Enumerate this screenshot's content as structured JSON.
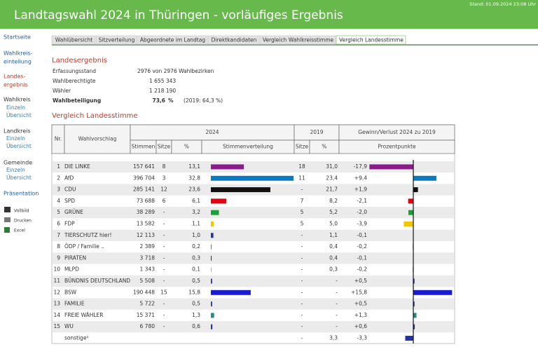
{
  "header": {
    "title": "Landtagswahl 2024 in Thüringen - vorläufiges Ergebnis",
    "timestamp": "Stand: 01.09.2024  23:08 Uhr"
  },
  "nav": {
    "start": "Startseite",
    "wk1": "Wahlkreis-",
    "wk2": "einteilung",
    "le1": "Landes-",
    "le2": "ergebnis",
    "wahlkreis": "Wahlkreis",
    "wk_einzeln": "Einzeln",
    "wk_uebersicht": "Übersicht",
    "landkreis": "Landkreis",
    "lk_einzeln": "Einzeln",
    "lk_uebersicht": "Übersicht",
    "gemeinde": "Gemeinde",
    "gm_einzeln": "Einzeln",
    "gm_uebersicht": "Übersicht",
    "praesentation": "Präsentation",
    "vollbild": "Vollbild",
    "drucken": "Drucken",
    "excel": "Excel"
  },
  "tabs": [
    "Wahlübersicht",
    "Sitzverteilung",
    "Abgeordnete im Landtag",
    "Direktkandidaten",
    "Vergleich Wahlkreisstimme",
    "Vergleich Landesstimme"
  ],
  "summary": {
    "title": "Landesergebnis",
    "rows": [
      [
        "Erfassungsstand",
        "2976 von 2976 Wahlbezirken"
      ],
      [
        "Wahlberechtigte",
        "1 655 343"
      ],
      [
        "Wähler",
        "1 218 190"
      ]
    ],
    "turnout": {
      "label": "Wahlbeteiligung",
      "value": "73,6",
      "unit": "%",
      "previous": "(2019: 64,3 %)"
    }
  },
  "table": {
    "title": "Vergleich Landesstimme",
    "headers": {
      "nr": "Nr.",
      "name": "Wahlvorschlag",
      "y2024": "2024",
      "y2019": "2019",
      "change": "Gewinn/Verlust 2024 zu 2019",
      "votes": "Stimmen",
      "seats": "Sitze",
      "pct": "%",
      "dist": "Stimmenverteilung",
      "seats2019": "Sitze",
      "pct2019": "%",
      "points": "Prozentpunkte"
    },
    "rows": [
      {
        "nr": "1",
        "name": "DIE LINKE",
        "votes": "157 641",
        "seats": "8",
        "pct": "13,1",
        "seats2019": "18",
        "pct2019": "31,0",
        "change": "-17,9",
        "color": "#8b1a8b"
      },
      {
        "nr": "2",
        "name": "AfD",
        "votes": "396 704",
        "seats": "3",
        "pct": "32,8",
        "seats2019": "11",
        "pct2019": "23,4",
        "change": "+9,4",
        "color": "#0a7bc1"
      },
      {
        "nr": "3",
        "name": "CDU",
        "votes": "285 141",
        "seats": "12",
        "pct": "23,6",
        "seats2019": "-",
        "pct2019": "21,7",
        "change": "+1,9",
        "color": "#111111"
      },
      {
        "nr": "4",
        "name": "SPD",
        "votes": "73 688",
        "seats": "6",
        "pct": "6,1",
        "seats2019": "7",
        "pct2019": "8,2",
        "change": "-2,1",
        "color": "#e3000f"
      },
      {
        "nr": "5",
        "name": "GRÜNE",
        "votes": "38 289",
        "seats": "-",
        "pct": "3,2",
        "seats2019": "5",
        "pct2019": "5,2",
        "change": "-2,0",
        "color": "#1aa037"
      },
      {
        "nr": "6",
        "name": "FDP",
        "votes": "13 582",
        "seats": "-",
        "pct": "1,1",
        "seats2019": "5",
        "pct2019": "5,0",
        "change": "-3,9",
        "color": "#f5c400"
      },
      {
        "nr": "7",
        "name": "TIERSCHUTZ hier!",
        "votes": "12 113",
        "seats": "-",
        "pct": "1,0",
        "seats2019": "-",
        "pct2019": "1,1",
        "change": "-0,1",
        "color": "#2233aa"
      },
      {
        "nr": "8",
        "name": "ÖDP / Familie ..",
        "votes": "2 389",
        "seats": "-",
        "pct": "0,2",
        "seats2019": "-",
        "pct2019": "0,4",
        "change": "-0,2",
        "color": "#2233aa"
      },
      {
        "nr": "9",
        "name": "PIRATEN",
        "votes": "3 718",
        "seats": "-",
        "pct": "0,3",
        "seats2019": "-",
        "pct2019": "0,4",
        "change": "-0,1",
        "color": "#2233aa"
      },
      {
        "nr": "10",
        "name": "MLPD",
        "votes": "1 343",
        "seats": "-",
        "pct": "0,1",
        "seats2019": "-",
        "pct2019": "0,3",
        "change": "-0,2",
        "color": "#2233aa"
      },
      {
        "nr": "11",
        "name": "BÜNDNIS DEUTSCHLAND",
        "votes": "5 508",
        "seats": "-",
        "pct": "0,5",
        "seats2019": "-",
        "pct2019": "-",
        "change": "+0,5",
        "color": "#2233aa"
      },
      {
        "nr": "12",
        "name": "BSW",
        "votes": "190 448",
        "seats": "15",
        "pct": "15,8",
        "seats2019": "-",
        "pct2019": "-",
        "change": "+15,8",
        "color": "#1a1ad0"
      },
      {
        "nr": "13",
        "name": "FAMILIE",
        "votes": "5 722",
        "seats": "-",
        "pct": "0,5",
        "seats2019": "-",
        "pct2019": "-",
        "change": "+0,5",
        "color": "#2233aa"
      },
      {
        "nr": "14",
        "name": "FREIE WÄHLER",
        "votes": "15 371",
        "seats": "-",
        "pct": "1,3",
        "seats2019": "-",
        "pct2019": "-",
        "change": "+1,3",
        "color": "#1f8f86"
      },
      {
        "nr": "15",
        "name": "WU",
        "votes": "6 780",
        "seats": "-",
        "pct": "0,6",
        "seats2019": "-",
        "pct2019": "-",
        "change": "+0,6",
        "color": "#2233aa"
      },
      {
        "name": "sonstige¹",
        "seats2019": "-",
        "pct2019": "3,3",
        "change": "-3,3",
        "color": "#2233aa"
      }
    ]
  }
}
